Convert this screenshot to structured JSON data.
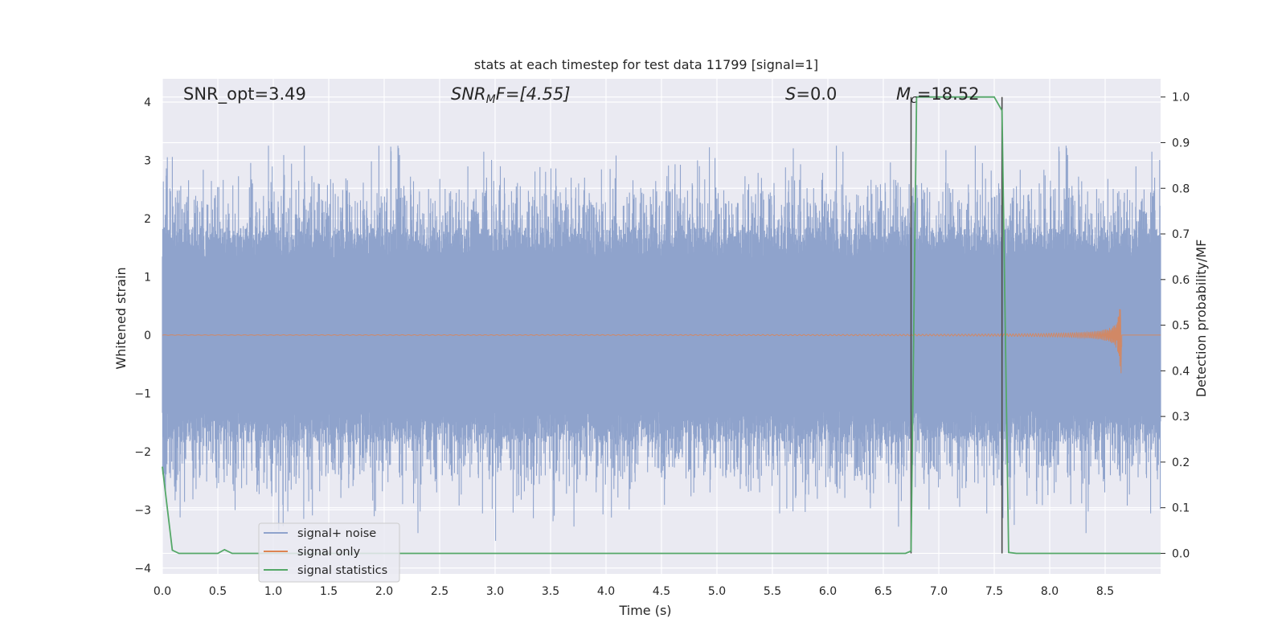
{
  "chart_data": {
    "type": "line",
    "title": "stats at each timestep for test data 11799 [signal=1]",
    "xlabel": "Time (s)",
    "ylabel": "Whitened strain",
    "y2label": "Detection probability/MF",
    "xlim": [
      0.0,
      9.0
    ],
    "ylim": [
      -4.1,
      4.4
    ],
    "y2lim": [
      -0.045,
      1.04
    ],
    "x_ticks": [
      "0.0",
      "0.5",
      "1.0",
      "1.5",
      "2.0",
      "2.5",
      "3.0",
      "3.5",
      "4.0",
      "4.5",
      "5.0",
      "5.5",
      "6.0",
      "6.5",
      "7.0",
      "7.5",
      "8.0",
      "8.5"
    ],
    "y_ticks": [
      "4",
      "3",
      "2",
      "1",
      "0",
      "−1",
      "−2",
      "−3",
      "−4"
    ],
    "y2_ticks": [
      "1.0",
      "0.9",
      "0.8",
      "0.7",
      "0.6",
      "0.5",
      "0.4",
      "0.3",
      "0.2",
      "0.1",
      "0.0"
    ],
    "grid": true,
    "legend_position": "lower-left",
    "annotations": {
      "snr_opt": "SNR_opt=3.49",
      "snr_mf_a": "SNR",
      "snr_mf_b": "M",
      "snr_mf_c": "F=[4.55]",
      "s_a": "S",
      "s_b": "=0.0",
      "mc_a": "M",
      "mc_b": "c",
      "mc_c": "=18.52"
    },
    "series": [
      {
        "name": "signal+ noise",
        "color": "#8fa3cc",
        "style": "noise",
        "amplitude_core": 1.3,
        "amplitude_peaks": [
          -3.7,
          3.25
        ]
      },
      {
        "name": "signal only",
        "color": "#dd8452",
        "style": "chirp",
        "merger_time": 8.65,
        "peak_amplitude": 0.72
      },
      {
        "name": "signal statistics",
        "color": "#55a868",
        "axis": "right",
        "x": [
          0.0,
          0.09,
          0.15,
          0.5,
          0.56,
          0.63,
          1.0,
          2.0,
          3.0,
          4.0,
          5.0,
          6.0,
          6.7,
          6.75,
          6.8,
          6.85,
          7.0,
          7.5,
          7.57,
          7.63,
          7.7,
          8.0,
          8.5,
          9.0
        ],
        "values": [
          0.19,
          0.007,
          0.0,
          0.0,
          0.008,
          0.0,
          0.0,
          0.0,
          0.0,
          0.0,
          0.0,
          0.0,
          0.0,
          0.005,
          1.0,
          1.0,
          1.0,
          1.0,
          0.97,
          0.002,
          0.0,
          0.0,
          0.0,
          0.0
        ]
      }
    ],
    "vertical_lines": [
      6.75,
      7.57
    ],
    "vertical_line_color": "#4a4a4a",
    "colors": {
      "plot_bg": "#eaeaf2",
      "grid": "#ffffff"
    }
  }
}
